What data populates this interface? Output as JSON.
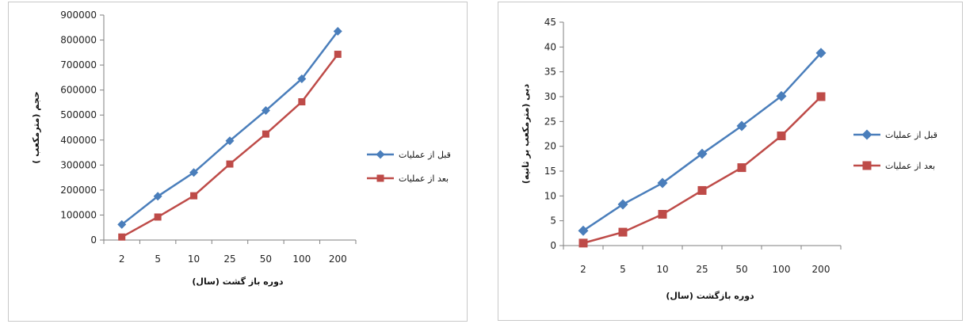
{
  "chart_data": [
    {
      "type": "line",
      "categories": [
        "2",
        "5",
        "10",
        "25",
        "50",
        "100",
        "200"
      ],
      "series": [
        {
          "name": "قبل از عملیات",
          "values": [
            62000,
            175000,
            270000,
            397000,
            518000,
            645000,
            835000
          ],
          "color": "#4a7ebb",
          "marker": "diamond"
        },
        {
          "name": "بعد از عملیات",
          "values": [
            12000,
            92000,
            177000,
            304000,
            424000,
            553000,
            743000
          ],
          "color": "#be4b48",
          "marker": "square"
        }
      ],
      "ylim": [
        0,
        900000
      ],
      "yticks": [
        "0",
        "100000",
        "200000",
        "300000",
        "400000",
        "500000",
        "600000",
        "700000",
        "800000",
        "900000"
      ],
      "xlabel": "دوره باز گشت (سال)",
      "ylabel": "حجم (مترمکعب )",
      "grid": false,
      "legend": "right"
    },
    {
      "type": "line",
      "categories": [
        "2",
        "5",
        "10",
        "25",
        "50",
        "100",
        "200"
      ],
      "series": [
        {
          "name": "قبل از عملیات",
          "values": [
            3,
            8.3,
            12.6,
            18.5,
            24.1,
            30.1,
            38.8
          ],
          "color": "#4a7ebb",
          "marker": "diamond"
        },
        {
          "name": "بعد از عملیات",
          "values": [
            0.5,
            2.7,
            6.3,
            11.1,
            15.7,
            22.1,
            30
          ],
          "color": "#be4b48",
          "marker": "square"
        }
      ],
      "ylim": [
        0,
        45
      ],
      "yticks": [
        "0",
        "5",
        "10",
        "15",
        "20",
        "25",
        "30",
        "35",
        "40",
        "45"
      ],
      "xlabel": "دوره بازگشت (سال)",
      "ylabel": "دبی (مترمکعب بر ثانیه)",
      "grid": false,
      "legend": "right"
    }
  ]
}
